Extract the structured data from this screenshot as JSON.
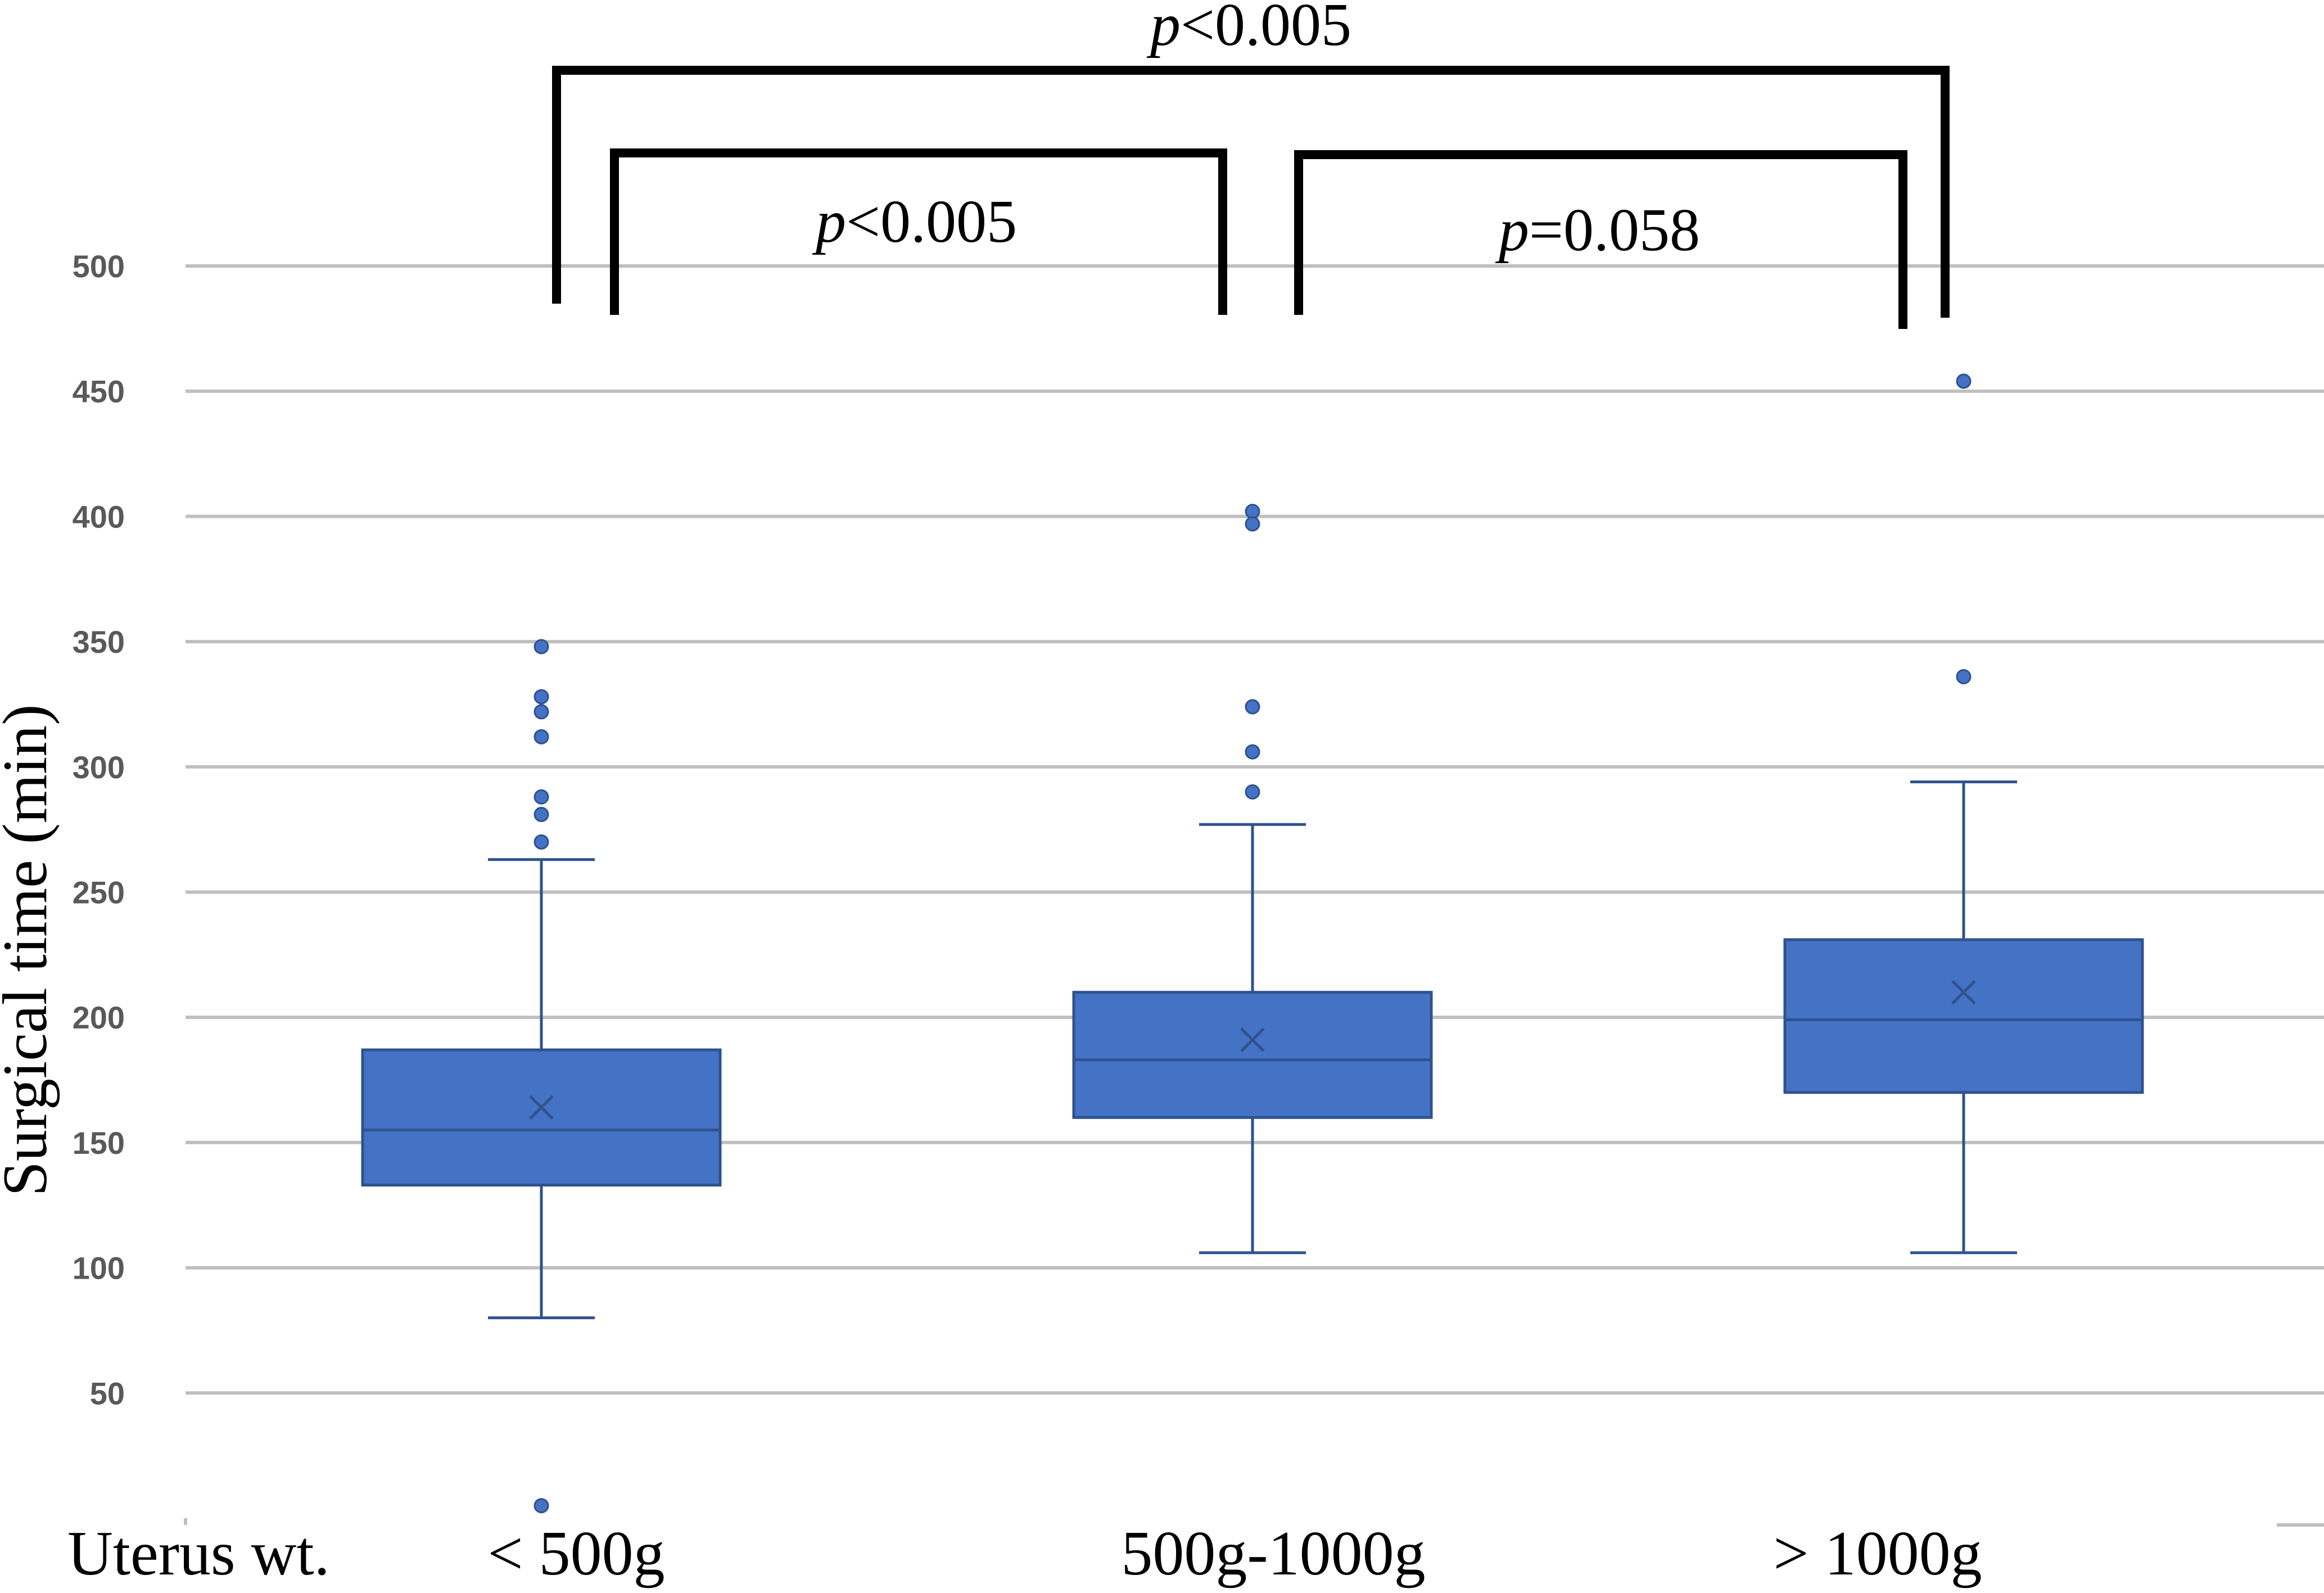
{
  "chart_data": {
    "type": "box",
    "title": "",
    "xlabel": "Uterus wt.",
    "ylabel": "Surgical time (min)",
    "ylim": [
      0,
      500
    ],
    "yticks": [
      50,
      100,
      150,
      200,
      250,
      300,
      350,
      400,
      450,
      500
    ],
    "grid": true,
    "legend": "none",
    "box_color": "#4472c4",
    "edge_color": "#2f528f",
    "categories": [
      "< 500g",
      "500g-1000g",
      "> 1000g"
    ],
    "boxes": [
      {
        "whisker_low": 80,
        "q1": 133,
        "median": 155,
        "mean": 164,
        "q3": 187,
        "whisker_high": 263,
        "outliers": [
          348,
          328,
          322,
          312,
          288,
          281,
          270,
          5
        ]
      },
      {
        "whisker_low": 106,
        "q1": 160,
        "median": 183,
        "mean": 191,
        "q3": 210,
        "whisker_high": 277,
        "outliers": [
          402,
          397,
          324,
          306,
          290
        ]
      },
      {
        "whisker_low": 106,
        "q1": 170,
        "median": 199,
        "mean": 210,
        "q3": 231,
        "whisker_high": 294,
        "outliers": [
          454,
          336
        ]
      }
    ],
    "comparisons": [
      {
        "groups": [
          0,
          2
        ],
        "p_symbol": "p",
        "p_text": "<0.005"
      },
      {
        "groups": [
          0,
          1
        ],
        "p_symbol": "p",
        "p_text": "<0.005"
      },
      {
        "groups": [
          1,
          2
        ],
        "p_symbol": "p",
        "p_text": "=0.058"
      }
    ]
  }
}
